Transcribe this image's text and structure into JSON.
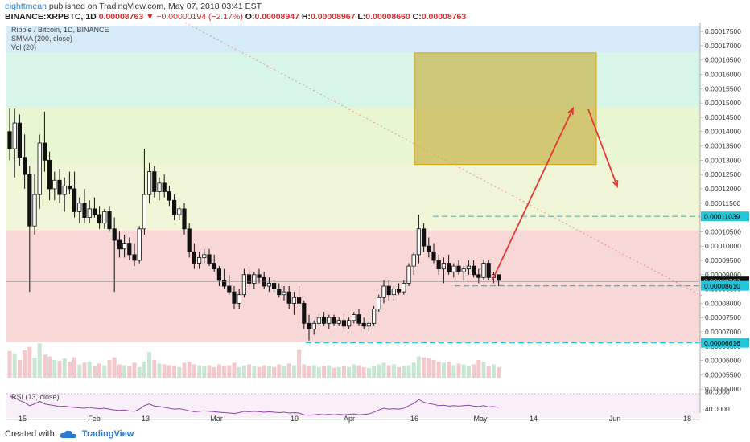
{
  "header": {
    "author": "eighttmean",
    "published_text": "published on TradingView.com, May 07, 2018 03:41 EST",
    "symbol": "BINANCE:XRPBTC, 1D",
    "last": "0.00008763",
    "change": "−0.00000194 (−2.17%)",
    "o_label": "O:",
    "o_val": "0.00008947",
    "h_label": "H:",
    "h_val": "0.00008967",
    "l_label": "L:",
    "l_val": "0.00008660",
    "c_label": "C:",
    "c_val": "0.00008763"
  },
  "legend": {
    "title": "Ripple / Bitcoin, 1D, BINANCE",
    "smma": "SMMA (200, close)",
    "vol": "Vol (20)",
    "rsi": "RSI (13, close)"
  },
  "footer": {
    "created": "Created with",
    "brand": "TradingView"
  },
  "colors": {
    "up": "#ffffff",
    "down": "#111111",
    "accent_cyan": "#26c6da",
    "arrow": "#e53935",
    "box": "#c9b44a",
    "bg_blue": "#d6eaf8",
    "bg_green": "#d7f5e8",
    "bg_lightgreen": "#e8f6d4",
    "bg_yellow": "#f1f5d8",
    "bg_red": "#f8d7d7",
    "vol_up": "#f4c9cc",
    "vol_down": "#c8e6d4"
  },
  "chart_data": {
    "type": "candlestick",
    "yaxis": {
      "ticks": [
        "0.00017500",
        "0.00017000",
        "0.00016500",
        "0.00016000",
        "0.00015500",
        "0.00015000",
        "0.00014500",
        "0.00014000",
        "0.00013500",
        "0.00013000",
        "0.00012500",
        "0.00012000",
        "0.00011500",
        "0.00011000",
        "0.00010500",
        "0.00010000",
        "0.00009500",
        "0.00009000",
        "0.00008500",
        "0.00008000",
        "0.00007500",
        "0.00007000",
        "0.00006500",
        "0.00006000",
        "0.00005500",
        "0.00005000"
      ],
      "ylim": [
        4.5e-05,
        0.000177
      ]
    },
    "xaxis": {
      "ticks": [
        "15",
        "Feb",
        "13",
        "Mar",
        "19",
        "Apr",
        "16",
        "May",
        "14",
        "Jun",
        "18"
      ]
    },
    "price_labels": {
      "resistance": "0.00011039",
      "current": "0.00008763",
      "support_1": "0.00008610",
      "support_2": "0.00006616"
    },
    "rsi_ticks": [
      "80.0000",
      "40.0000"
    ],
    "zones": [
      {
        "name": "blue",
        "from": 0.0001675,
        "to": 0.000177
      },
      {
        "name": "green",
        "from": 0.0001485,
        "to": 0.0001675
      },
      {
        "name": "lightgreen",
        "from": 0.0001285,
        "to": 0.0001485
      },
      {
        "name": "yellow",
        "from": 0.0001055,
        "to": 0.0001285
      },
      {
        "name": "red",
        "from": 6.65e-05,
        "to": 0.0001055
      }
    ],
    "target_box": {
      "from": 0.0001285,
      "to": 0.0001675
    },
    "candles": [
      [
        0.00014,
        0.000148,
        0.00013,
        0.000134
      ],
      [
        0.000134,
        0.000148,
        0.000124,
        0.000143
      ],
      [
        0.000143,
        0.000146,
        0.000128,
        0.000131
      ],
      [
        0.000131,
        0.000139,
        0.00012,
        0.000125
      ],
      [
        0.000125,
        0.000128,
        8.4e-05,
        0.000107
      ],
      [
        0.000107,
        0.000125,
        0.000104,
        0.000118
      ],
      [
        0.000118,
        0.000139,
        0.000113,
        0.000136
      ],
      [
        0.000136,
        0.000147,
        0.000126,
        0.00013
      ],
      [
        0.00013,
        0.000133,
        0.000116,
        0.00012
      ],
      [
        0.00012,
        0.000126,
        0.000116,
        0.000123
      ],
      [
        0.000123,
        0.000127,
        0.000115,
        0.000118
      ],
      [
        0.000118,
        0.000124,
        0.000112,
        0.000121
      ],
      [
        0.000121,
        0.000126,
        0.000118,
        0.00012
      ],
      [
        0.00012,
        0.000126,
        0.00011,
        0.000112
      ],
      [
        0.000112,
        0.000117,
        0.000108,
        0.000115
      ],
      [
        0.000115,
        0.00012,
        0.000108,
        0.00011
      ],
      [
        0.00011,
        0.000116,
        0.000108,
        0.000113
      ],
      [
        0.000113,
        0.000117,
        0.00011,
        0.000111
      ],
      [
        0.000111,
        0.000114,
        0.000106,
        0.000108
      ],
      [
        0.000108,
        0.000113,
        0.000106,
        0.000112
      ],
      [
        0.000112,
        0.000114,
        0.000105,
        0.000106
      ],
      [
        0.000106,
        0.00011,
        8.4e-05,
        0.000102
      ],
      [
        0.000102,
        0.000105,
        9.6e-05,
        9.9e-05
      ],
      [
        9.9e-05,
        0.000104,
        9.6e-05,
        0.000101
      ],
      [
        0.000101,
        0.000103,
        9.5e-05,
        9.7e-05
      ],
      [
        9.7e-05,
        0.000101,
        9.3e-05,
        9.5e-05
      ],
      [
        9.5e-05,
        0.000107,
        9.4e-05,
        0.000106
      ],
      [
        0.000106,
        0.000134,
        0.000104,
        0.000118
      ],
      [
        0.000118,
        0.000129,
        0.000115,
        0.000126
      ],
      [
        0.000126,
        0.000128,
        0.000117,
        0.000119
      ],
      [
        0.000119,
        0.000124,
        0.000116,
        0.000122
      ],
      [
        0.000122,
        0.000125,
        0.000117,
        0.000119
      ],
      [
        0.000119,
        0.000121,
        0.000114,
        0.000116
      ],
      [
        0.000116,
        0.000118,
        0.000109,
        0.000111
      ],
      [
        0.000111,
        0.000114,
        0.000109,
        0.000113
      ],
      [
        0.000113,
        0.000115,
        0.000104,
        0.000106
      ],
      [
        0.000106,
        0.000108,
        9.6e-05,
        9.8e-05
      ],
      [
        9.8e-05,
        0.000101,
        9.2e-05,
        9.4e-05
      ],
      [
        9.4e-05,
        9.8e-05,
        9.2e-05,
        9.6e-05
      ],
      [
        9.6e-05,
        9.9e-05,
        9.4e-05,
        9.7e-05
      ],
      [
        9.7e-05,
        9.9e-05,
        9.3e-05,
        9.4e-05
      ],
      [
        9.4e-05,
        9.7e-05,
        9.1e-05,
        9.2e-05
      ],
      [
        9.2e-05,
        9.3e-05,
        8.6e-05,
        8.8e-05
      ],
      [
        8.8e-05,
        9.2e-05,
        8.5e-05,
        8.6e-05
      ],
      [
        8.6e-05,
        9e-05,
        8.3e-05,
        8.4e-05
      ],
      [
        8.4e-05,
        8.6e-05,
        7.8e-05,
        8e-05
      ],
      [
        8e-05,
        8.5e-05,
        7.8e-05,
        8.3e-05
      ],
      [
        8.3e-05,
        9.2e-05,
        8.2e-05,
        9e-05
      ],
      [
        9e-05,
        9.2e-05,
        8.5e-05,
        8.7e-05
      ],
      [
        8.7e-05,
        9.1e-05,
        8.5e-05,
        9e-05
      ],
      [
        9e-05,
        9.2e-05,
        8.7e-05,
        8.9e-05
      ],
      [
        8.9e-05,
        9.1e-05,
        8.5e-05,
        8.6e-05
      ],
      [
        8.6e-05,
        8.9e-05,
        8.4e-05,
        8.7e-05
      ],
      [
        8.7e-05,
        8.8e-05,
        8.4e-05,
        8.5e-05
      ],
      [
        8.5e-05,
        8.7e-05,
        8.2e-05,
        8.3e-05
      ],
      [
        8.3e-05,
        8.6e-05,
        8.1e-05,
        8.4e-05
      ],
      [
        8.4e-05,
        8.6e-05,
        7.8e-05,
        8e-05
      ],
      [
        8e-05,
        8.4e-05,
        7.6e-05,
        8.2e-05
      ],
      [
        8.2e-05,
        8.6e-05,
        7.9e-05,
        8e-05
      ],
      [
        8e-05,
        8.1e-05,
        7.1e-05,
        7.3e-05
      ],
      [
        7.3e-05,
        7.6e-05,
        6.7e-05,
        7.1e-05
      ],
      [
        7.1e-05,
        7.4e-05,
        6.9e-05,
        7.3e-05
      ],
      [
        7.3e-05,
        7.6e-05,
        7.2e-05,
        7.5e-05
      ],
      [
        7.5e-05,
        7.7e-05,
        7.2e-05,
        7.3e-05
      ],
      [
        7.3e-05,
        7.6e-05,
        7.1e-05,
        7.5e-05
      ],
      [
        7.5e-05,
        7.6e-05,
        7.2e-05,
        7.3e-05
      ],
      [
        7.3e-05,
        7.5e-05,
        7.2e-05,
        7.4e-05
      ],
      [
        7.4e-05,
        7.6e-05,
        7.1e-05,
        7.2e-05
      ],
      [
        7.2e-05,
        7.5e-05,
        7.1e-05,
        7.4e-05
      ],
      [
        7.4e-05,
        7.7e-05,
        7.3e-05,
        7.6e-05
      ],
      [
        7.6e-05,
        7.8e-05,
        7.2e-05,
        7.3e-05
      ],
      [
        7.3e-05,
        7.5e-05,
        7.1e-05,
        7.2e-05
      ],
      [
        7.2e-05,
        7.4e-05,
        7e-05,
        7.3e-05
      ],
      [
        7.3e-05,
        7.9e-05,
        7.2e-05,
        7.8e-05
      ],
      [
        7.8e-05,
        8.3e-05,
        7.7e-05,
        8.2e-05
      ],
      [
        8.2e-05,
        8.8e-05,
        8e-05,
        8.6e-05
      ],
      [
        8.6e-05,
        8.8e-05,
        8.1e-05,
        8.3e-05
      ],
      [
        8.3e-05,
        8.6e-05,
        8.1e-05,
        8.5e-05
      ],
      [
        8.5e-05,
        8.7e-05,
        8.3e-05,
        8.4e-05
      ],
      [
        8.4e-05,
        8.8e-05,
        8.3e-05,
        8.7e-05
      ],
      [
        8.7e-05,
        9.4e-05,
        8.6e-05,
        9.3e-05
      ],
      [
        9.3e-05,
        9.8e-05,
        9e-05,
        9.7e-05
      ],
      [
        9.7e-05,
        0.000111,
        9.4e-05,
        0.000106
      ],
      [
        0.000106,
        0.000108,
        9.8e-05,
        0.0001
      ],
      [
        0.0001,
        0.000103,
        9.6e-05,
        9.8e-05
      ],
      [
        9.8e-05,
        0.000101,
        9.4e-05,
        9.5e-05
      ],
      [
        9.5e-05,
        9.7e-05,
        9e-05,
        9.2e-05
      ],
      [
        9.2e-05,
        9.6e-05,
        8.7e-05,
        9.4e-05
      ],
      [
        9.4e-05,
        9.7e-05,
        9e-05,
        9.1e-05
      ],
      [
        9.1e-05,
        9.4e-05,
        8.9e-05,
        9.3e-05
      ],
      [
        9.3e-05,
        9.5e-05,
        9e-05,
        9.1e-05
      ],
      [
        9.1e-05,
        9.3e-05,
        8.8e-05,
        9.2e-05
      ],
      [
        9.2e-05,
        9.5e-05,
        9e-05,
        9.3e-05
      ],
      [
        9.3e-05,
        9.5e-05,
        8.9e-05,
        9e-05
      ],
      [
        9e-05,
        9.2e-05,
        8.7e-05,
        8.9e-05
      ],
      [
        8.9e-05,
        9.5e-05,
        8.8e-05,
        9.4e-05
      ],
      [
        9.4e-05,
        9.5e-05,
        8.8e-05,
        8.9e-05
      ],
      [
        8.9e-05,
        9.1e-05,
        8.7e-05,
        9e-05
      ],
      [
        9e-05,
        9e-05,
        8.6e-05,
        8.8e-05
      ]
    ],
    "volumes": [
      60,
      55,
      40,
      62,
      70,
      45,
      78,
      52,
      48,
      40,
      38,
      44,
      36,
      46,
      30,
      34,
      36,
      26,
      32,
      28,
      40,
      46,
      30,
      28,
      26,
      34,
      24,
      36,
      58,
      40,
      32,
      30,
      28,
      26,
      24,
      34,
      36,
      30,
      28,
      26,
      28,
      24,
      30,
      26,
      28,
      34,
      24,
      28,
      30,
      26,
      24,
      28,
      26,
      24,
      30,
      26,
      32,
      28,
      64,
      30,
      26,
      28,
      24,
      26,
      28,
      22,
      24,
      26,
      24,
      30,
      28,
      24,
      22,
      26,
      30,
      34,
      28,
      30,
      24,
      26,
      28,
      34,
      48,
      46,
      44,
      40,
      36,
      34,
      36,
      28,
      32,
      30,
      26,
      30,
      40,
      36,
      26,
      30,
      24
    ],
    "rsi": [
      70,
      66,
      60,
      55,
      48,
      52,
      58,
      52,
      50,
      48,
      46,
      47,
      45,
      44,
      43,
      42,
      44,
      42,
      41,
      42,
      40,
      38,
      37,
      38,
      36,
      35,
      40,
      48,
      52,
      47,
      46,
      44,
      42,
      40,
      41,
      39,
      36,
      34,
      35,
      36,
      35,
      34,
      33,
      32,
      31,
      30,
      32,
      35,
      34,
      35,
      34,
      33,
      34,
      33,
      32,
      33,
      31,
      32,
      31,
      27,
      26,
      27,
      28,
      27,
      28,
      27,
      28,
      27,
      28,
      29,
      27,
      28,
      29,
      33,
      38,
      42,
      40,
      41,
      40,
      42,
      48,
      53,
      62,
      56,
      53,
      51,
      48,
      49,
      47,
      48,
      47,
      48,
      49,
      47,
      46,
      48,
      45,
      46,
      44
    ]
  }
}
